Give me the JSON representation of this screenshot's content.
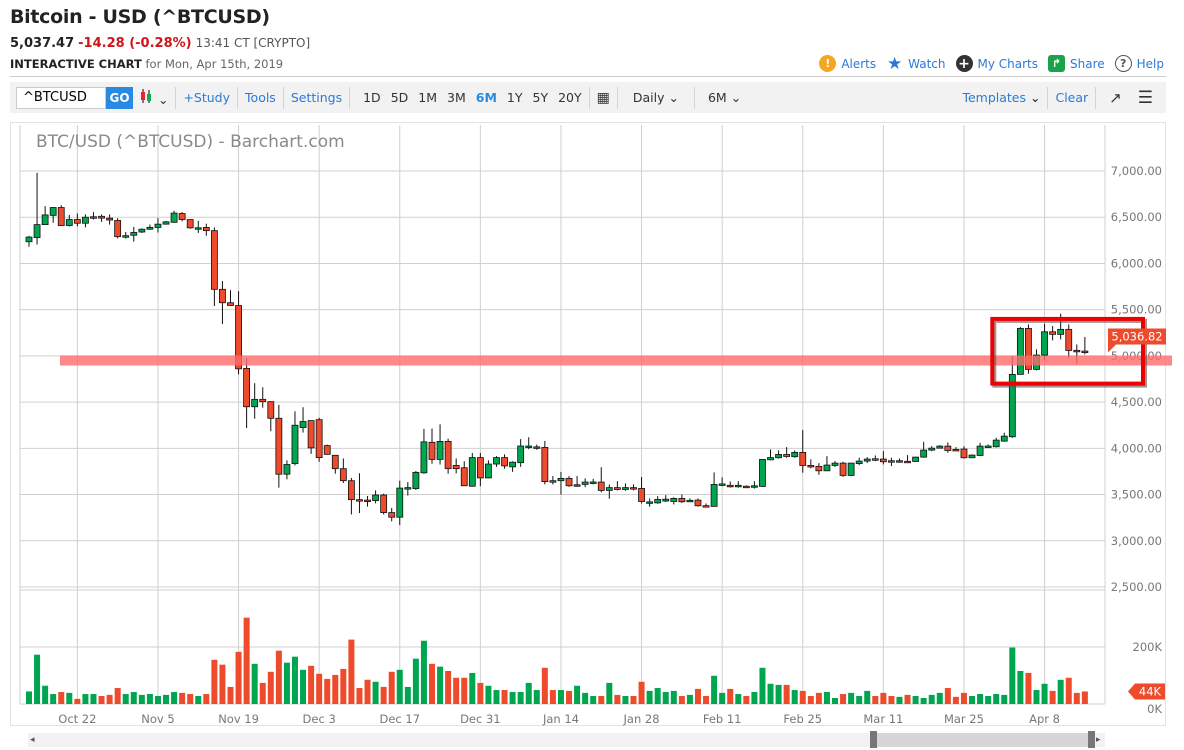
{
  "header": {
    "title": "Bitcoin - USD (^BTCUSD)",
    "last": "5,037.47",
    "change": "-14.28 (-0.28%)",
    "time": "13:41 CT [CRYPTO]",
    "subtitle_bold": "INTERACTIVE CHART",
    "subtitle_rest": "for Mon, Apr 15th, 2019",
    "links": [
      {
        "label": "Alerts",
        "icon": "alert-icon",
        "color": "#f5a623"
      },
      {
        "label": "Watch",
        "icon": "star-icon",
        "color": "#2a7ad5"
      },
      {
        "label": "My Charts",
        "icon": "plus-circle-icon",
        "color": "#333333"
      },
      {
        "label": "Share",
        "icon": "share-icon",
        "color": "#1aa34a"
      },
      {
        "label": "Help",
        "icon": "help-icon",
        "color": "#555555"
      }
    ]
  },
  "toolbar": {
    "symbol": "^BTCUSD",
    "go": "GO",
    "study": "+Study",
    "tools": "Tools",
    "settings": "Settings",
    "periods": [
      "1D",
      "5D",
      "1M",
      "3M",
      "6M",
      "1Y",
      "5Y",
      "20Y"
    ],
    "active_period": "6M",
    "interval": "Daily",
    "range": "6M",
    "templates": "Templates",
    "clear": "Clear"
  },
  "chart": {
    "title": "BTC/USD (^BTCUSD) - Barchart.com",
    "last_price_tag": "5,036.82",
    "volume_tag": "44K",
    "colors": {
      "up": "#00a54f",
      "down": "#ee4a2c",
      "band": "#ff6b6b",
      "box": "#ee0000"
    }
  },
  "chart_data": {
    "type": "candlestick",
    "title": "BTC/USD (^BTCUSD) - Barchart.com",
    "price_ticks": [
      "7,000.00",
      "6,500.00",
      "6,000.00",
      "5,500.00",
      "5,000.00",
      "4,500.00",
      "4,000.00",
      "3,500.00",
      "3,000.00",
      "2,500.00"
    ],
    "price_range": [
      2500,
      7000
    ],
    "volume_ticks": [
      "200K",
      "0K"
    ],
    "volume_range_k": [
      0,
      200
    ],
    "x_ticks": [
      {
        "label": "Oct 22",
        "date": "2018-10-22"
      },
      {
        "label": "Nov 5",
        "date": "2018-11-05"
      },
      {
        "label": "Nov 19",
        "date": "2018-11-19"
      },
      {
        "label": "Dec 3",
        "date": "2018-12-03"
      },
      {
        "label": "Dec 17",
        "date": "2018-12-17"
      },
      {
        "label": "Dec 31",
        "date": "2018-12-31"
      },
      {
        "label": "Jan 14",
        "date": "2019-01-14"
      },
      {
        "label": "Jan 28",
        "date": "2019-01-28"
      },
      {
        "label": "Feb 11",
        "date": "2019-02-11"
      },
      {
        "label": "Feb 25",
        "date": "2019-02-25"
      },
      {
        "label": "Mar 11",
        "date": "2019-03-11"
      },
      {
        "label": "Mar 25",
        "date": "2019-03-25"
      },
      {
        "label": "Apr 8",
        "date": "2019-04-08"
      }
    ],
    "horizontal_line": 4950,
    "highlight_box": {
      "from": "2019-04-02",
      "to": "2019-04-15",
      "price_low": 4700,
      "price_high": 5400
    },
    "columns": [
      "date",
      "open",
      "high",
      "low",
      "close",
      "volume_k"
    ],
    "candles": [
      [
        "2018-10-12",
        6235,
        6300,
        6180,
        6285,
        44
      ],
      [
        "2018-10-15",
        6280,
        6980,
        6205,
        6420,
        173
      ],
      [
        "2018-10-16",
        6420,
        6620,
        6420,
        6525,
        64
      ],
      [
        "2018-10-17",
        6520,
        6610,
        6440,
        6605,
        35
      ],
      [
        "2018-10-18",
        6605,
        6630,
        6410,
        6410,
        42
      ],
      [
        "2018-10-19",
        6410,
        6525,
        6400,
        6475,
        39
      ],
      [
        "2018-10-22",
        6475,
        6540,
        6400,
        6435,
        18
      ],
      [
        "2018-10-23",
        6435,
        6530,
        6390,
        6500,
        35
      ],
      [
        "2018-10-24",
        6500,
        6555,
        6475,
        6505,
        35
      ],
      [
        "2018-10-25",
        6510,
        6530,
        6450,
        6490,
        28
      ],
      [
        "2018-10-26",
        6490,
        6530,
        6420,
        6470,
        32
      ],
      [
        "2018-10-29",
        6465,
        6490,
        6270,
        6290,
        56
      ],
      [
        "2018-10-30",
        6300,
        6340,
        6270,
        6300,
        35
      ],
      [
        "2018-10-31",
        6305,
        6395,
        6235,
        6335,
        42
      ],
      [
        "2018-11-01",
        6340,
        6380,
        6330,
        6370,
        32
      ],
      [
        "2018-11-02",
        6370,
        6420,
        6365,
        6390,
        35
      ],
      [
        "2018-11-05",
        6390,
        6490,
        6335,
        6425,
        28
      ],
      [
        "2018-11-06",
        6425,
        6460,
        6420,
        6450,
        32
      ],
      [
        "2018-11-07",
        6445,
        6570,
        6440,
        6545,
        42
      ],
      [
        "2018-11-08",
        6540,
        6555,
        6455,
        6475,
        39
      ],
      [
        "2018-11-09",
        6475,
        6475,
        6375,
        6385,
        35
      ],
      [
        "2018-11-12",
        6385,
        6460,
        6330,
        6386,
        28
      ],
      [
        "2018-11-13",
        6390,
        6430,
        6300,
        6355,
        35
      ],
      [
        "2018-11-14",
        6355,
        6390,
        5540,
        5720,
        155
      ],
      [
        "2018-11-15",
        5720,
        5810,
        5345,
        5575,
        138
      ],
      [
        "2018-11-16",
        5575,
        5710,
        5545,
        5545,
        60
      ],
      [
        "2018-11-19",
        5545,
        5700,
        4800,
        4860,
        183
      ],
      [
        "2018-11-20",
        4865,
        4980,
        4220,
        4450,
        303
      ],
      [
        "2018-11-21",
        4450,
        4705,
        4320,
        4530,
        141
      ],
      [
        "2018-11-22",
        4530,
        4660,
        4440,
        4505,
        74
      ],
      [
        "2018-11-23",
        4505,
        4510,
        4185,
        4325,
        113
      ],
      [
        "2018-11-26",
        4325,
        4470,
        3575,
        3720,
        187
      ],
      [
        "2018-11-27",
        3720,
        3870,
        3665,
        3825,
        145
      ],
      [
        "2018-11-28",
        3835,
        4400,
        3815,
        4250,
        166
      ],
      [
        "2018-11-29",
        4225,
        4445,
        4170,
        4290,
        120
      ],
      [
        "2018-11-30",
        4300,
        4300,
        3940,
        4005,
        134
      ],
      [
        "2018-12-03",
        4310,
        4330,
        3855,
        3900,
        106
      ],
      [
        "2018-12-04",
        4030,
        4040,
        3930,
        3935,
        88
      ],
      [
        "2018-12-05",
        3925,
        3925,
        3725,
        3780,
        102
      ],
      [
        "2018-12-06",
        3780,
        3890,
        3625,
        3650,
        123
      ],
      [
        "2018-12-07",
        3650,
        3680,
        3285,
        3445,
        226
      ],
      [
        "2018-12-10",
        3445,
        3730,
        3300,
        3444,
        56
      ],
      [
        "2018-12-11",
        3440,
        3485,
        3370,
        3439,
        85
      ],
      [
        "2018-12-12",
        3435,
        3545,
        3405,
        3495,
        78
      ],
      [
        "2018-12-13",
        3495,
        3510,
        3285,
        3305,
        60
      ],
      [
        "2018-12-14",
        3305,
        3355,
        3210,
        3255,
        113
      ],
      [
        "2018-12-17",
        3255,
        3650,
        3170,
        3570,
        120
      ],
      [
        "2018-12-18",
        3570,
        3635,
        3490,
        3575,
        60
      ],
      [
        "2018-12-19",
        3565,
        3755,
        3550,
        3740,
        159
      ],
      [
        "2018-12-20",
        3735,
        4210,
        3725,
        4070,
        222
      ],
      [
        "2018-12-21",
        4065,
        4215,
        3833,
        3880,
        141
      ],
      [
        "2018-12-24",
        3880,
        4260,
        3825,
        4075,
        131
      ],
      [
        "2018-12-25",
        4075,
        4105,
        3725,
        3780,
        116
      ],
      [
        "2018-12-26",
        3815,
        3890,
        3730,
        3780,
        92
      ],
      [
        "2018-12-27",
        3790,
        3860,
        3595,
        3595,
        92
      ],
      [
        "2018-12-28",
        3590,
        3950,
        3585,
        3900,
        109
      ],
      [
        "2018-12-31",
        3900,
        3950,
        3590,
        3680,
        74
      ],
      [
        "2019-01-01",
        3680,
        3870,
        3675,
        3830,
        64
      ],
      [
        "2019-01-02",
        3830,
        3915,
        3800,
        3900,
        49
      ],
      [
        "2019-01-03",
        3900,
        3935,
        3780,
        3810,
        49
      ],
      [
        "2019-01-04",
        3800,
        3860,
        3745,
        3850,
        42
      ],
      [
        "2019-01-07",
        3845,
        4100,
        3800,
        4025,
        42
      ],
      [
        "2019-01-08",
        4020,
        4120,
        3990,
        4025,
        74
      ],
      [
        "2019-01-09",
        4015,
        4040,
        3985,
        4016,
        49
      ],
      [
        "2019-01-10",
        4010,
        4080,
        3610,
        3640,
        127
      ],
      [
        "2019-01-11",
        3650,
        3700,
        3610,
        3645,
        49
      ],
      [
        "2019-01-14",
        3650,
        3745,
        3500,
        3675,
        49
      ],
      [
        "2019-01-15",
        3675,
        3700,
        3585,
        3595,
        46
      ],
      [
        "2019-01-16",
        3605,
        3700,
        3585,
        3606,
        64
      ],
      [
        "2019-01-17",
        3610,
        3675,
        3580,
        3635,
        39
      ],
      [
        "2019-01-18",
        3635,
        3670,
        3610,
        3636,
        28
      ],
      [
        "2019-01-21",
        3635,
        3795,
        3525,
        3545,
        28
      ],
      [
        "2019-01-22",
        3545,
        3610,
        3455,
        3575,
        74
      ],
      [
        "2019-01-23",
        3575,
        3645,
        3545,
        3555,
        32
      ],
      [
        "2019-01-24",
        3555,
        3620,
        3540,
        3575,
        28
      ],
      [
        "2019-01-25",
        3575,
        3610,
        3545,
        3570,
        28
      ],
      [
        "2019-01-28",
        3566,
        3690,
        3403,
        3425,
        78
      ],
      [
        "2019-01-29",
        3420,
        3458,
        3368,
        3421,
        46
      ],
      [
        "2019-01-30",
        3410,
        3483,
        3400,
        3447,
        56
      ],
      [
        "2019-01-31",
        3430,
        3494,
        3420,
        3450,
        42
      ],
      [
        "2019-02-01",
        3425,
        3470,
        3393,
        3458,
        46
      ],
      [
        "2019-02-04",
        3458,
        3501,
        3410,
        3422,
        28
      ],
      [
        "2019-02-05",
        3436,
        3458,
        3422,
        3438,
        32
      ],
      [
        "2019-02-06",
        3440,
        3458,
        3368,
        3379,
        53
      ],
      [
        "2019-02-07",
        3380,
        3404,
        3368,
        3378,
        28
      ],
      [
        "2019-02-08",
        3372,
        3740,
        3370,
        3610,
        99
      ],
      [
        "2019-02-11",
        3610,
        3685,
        3590,
        3615,
        39
      ],
      [
        "2019-02-12",
        3600,
        3642,
        3575,
        3595,
        53
      ],
      [
        "2019-02-13",
        3595,
        3645,
        3575,
        3600,
        35
      ],
      [
        "2019-02-14",
        3590,
        3600,
        3575,
        3585,
        28
      ],
      [
        "2019-02-15",
        3590,
        3645,
        3565,
        3595,
        42
      ],
      [
        "2019-02-18",
        3588,
        3885,
        3585,
        3880,
        127
      ],
      [
        "2019-02-19",
        3876,
        3988,
        3870,
        3900,
        71
      ],
      [
        "2019-02-20",
        3898,
        3977,
        3890,
        3934,
        67
      ],
      [
        "2019-02-21",
        3934,
        4013,
        3898,
        3912,
        67
      ],
      [
        "2019-02-22",
        3910,
        3977,
        3898,
        3956,
        49
      ],
      [
        "2019-02-25",
        3956,
        4197,
        3736,
        3815,
        46
      ],
      [
        "2019-02-26",
        3815,
        3880,
        3783,
        3812,
        28
      ],
      [
        "2019-02-27",
        3805,
        3840,
        3714,
        3757,
        39
      ],
      [
        "2019-02-28",
        3757,
        3916,
        3754,
        3819,
        42
      ],
      [
        "2019-03-01",
        3815,
        3862,
        3800,
        3840,
        21
      ],
      [
        "2019-03-04",
        3840,
        3855,
        3692,
        3707,
        35
      ],
      [
        "2019-03-05",
        3707,
        3845,
        3700,
        3840,
        39
      ],
      [
        "2019-03-06",
        3835,
        3898,
        3818,
        3862,
        28
      ],
      [
        "2019-03-07",
        3862,
        3905,
        3840,
        3884,
        46
      ],
      [
        "2019-03-08",
        3887,
        3923,
        3862,
        3885,
        28
      ],
      [
        "2019-03-11",
        3884,
        3970,
        3826,
        3855,
        39
      ],
      [
        "2019-03-12",
        3866,
        3898,
        3808,
        3865,
        28
      ],
      [
        "2019-03-13",
        3865,
        3890,
        3844,
        3866,
        25
      ],
      [
        "2019-03-14",
        3860,
        3927,
        3844,
        3858,
        32
      ],
      [
        "2019-03-15",
        3858,
        3910,
        3855,
        3905,
        28
      ],
      [
        "2019-03-18",
        3905,
        4071,
        3898,
        3981,
        21
      ],
      [
        "2019-03-19",
        3981,
        4024,
        3970,
        4002,
        32
      ],
      [
        "2019-03-20",
        4002,
        4035,
        3998,
        4024,
        39
      ],
      [
        "2019-03-21",
        4024,
        4064,
        3952,
        3977,
        56
      ],
      [
        "2019-03-22",
        3988,
        4013,
        3977,
        3985,
        25
      ],
      [
        "2019-03-25",
        3992,
        4024,
        3890,
        3898,
        39
      ],
      [
        "2019-03-26",
        3898,
        3934,
        3895,
        3927,
        28
      ],
      [
        "2019-03-27",
        3923,
        4060,
        3916,
        4024,
        35
      ],
      [
        "2019-03-28",
        4020,
        4042,
        4013,
        4025,
        28
      ],
      [
        "2019-03-29",
        4017,
        4114,
        4010,
        4089,
        35
      ],
      [
        "2019-04-01",
        4078,
        4168,
        4071,
        4132,
        32
      ],
      [
        "2019-04-02",
        4125,
        4998,
        4114,
        4800,
        198
      ],
      [
        "2019-04-03",
        4800,
        5312,
        4800,
        5297,
        116
      ],
      [
        "2019-04-04",
        5297,
        5341,
        4807,
        4854,
        109
      ],
      [
        "2019-04-05",
        4854,
        5070,
        4843,
        5009,
        49
      ],
      [
        "2019-04-08",
        5009,
        5348,
        4958,
        5261,
        71
      ],
      [
        "2019-04-09",
        5261,
        5323,
        5168,
        5233,
        46
      ],
      [
        "2019-04-10",
        5233,
        5456,
        5178,
        5287,
        85
      ],
      [
        "2019-04-11",
        5287,
        5341,
        4980,
        5059,
        92
      ],
      [
        "2019-04-12",
        5060,
        5124,
        4915,
        5056,
        39
      ],
      [
        "2019-04-15",
        5052,
        5204,
        5016,
        5040,
        44
      ]
    ]
  }
}
